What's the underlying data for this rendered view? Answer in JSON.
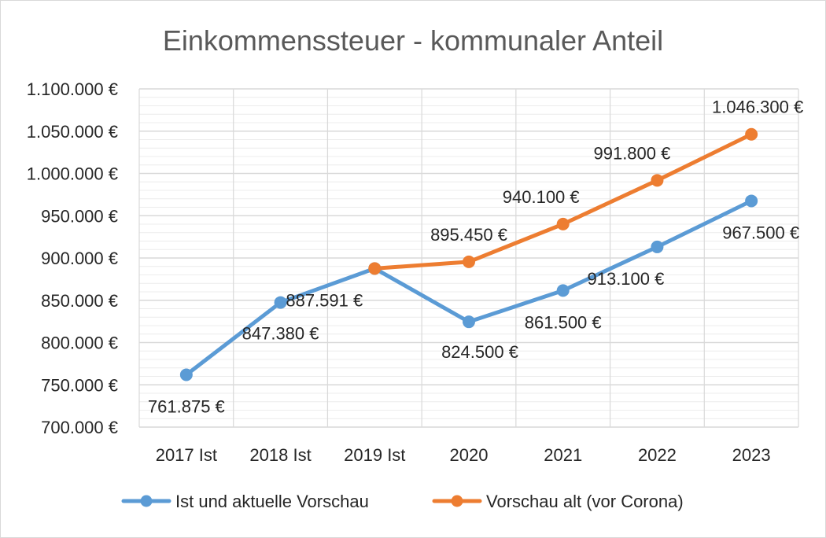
{
  "chart_data": {
    "type": "line",
    "title": "Einkommenssteuer - kommunaler Anteil",
    "categories": [
      "2017 Ist",
      "2018 Ist",
      "2019 Ist",
      "2020",
      "2021",
      "2022",
      "2023"
    ],
    "ylim": [
      700000,
      1100000
    ],
    "ymajor": 50000,
    "yminor": 10000,
    "ytick_labels": [
      "700.000 €",
      "750.000 €",
      "800.000 €",
      "850.000 €",
      "900.000 €",
      "950.000 €",
      "1.000.000 €",
      "1.050.000 €",
      "1.100.000 €"
    ],
    "grid": true,
    "legend_position": "bottom",
    "series": [
      {
        "name": "Ist und aktuelle Vorschau",
        "color": "#5b9bd5",
        "values": [
          761875,
          847380,
          887591,
          824500,
          861500,
          913100,
          967500
        ],
        "labels": [
          "761.875 €",
          "847.380 €",
          "887.591 €",
          "824.500 €",
          "861.500 €",
          "913.100 €",
          "967.500 €"
        ]
      },
      {
        "name": "Vorschau alt (vor Corona)",
        "color": "#ed7d31",
        "values": [
          null,
          null,
          887591,
          895450,
          940100,
          991800,
          1046300
        ],
        "labels": [
          "",
          "",
          "",
          "895.450 €",
          "940.100 €",
          "991.800 €",
          "1.046.300 €"
        ]
      }
    ]
  }
}
